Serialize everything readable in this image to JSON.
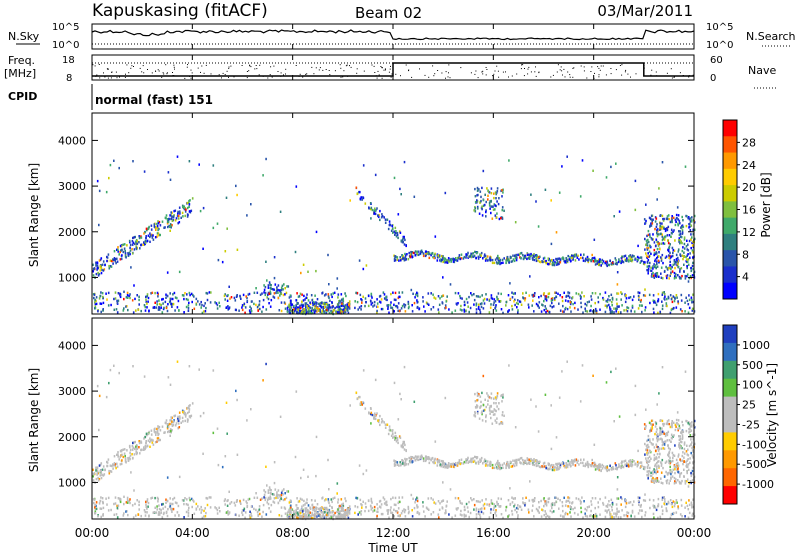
{
  "header": {
    "station": "Kapuskasing (fitACF)",
    "beam": "Beam 02",
    "date": "03/Mar/2011"
  },
  "panels": {
    "nsky_label": "N.Sky",
    "nsearch_label": "N.Search",
    "freq_label_line1": "Freq.",
    "freq_label_line2": "[MHz]",
    "nave_label": "Nave",
    "cpid_label": "CPID",
    "cpid_text": "normal (fast) 151",
    "noise_ticks": [
      "10^5",
      "10^0"
    ],
    "freq_ticks": [
      "18",
      "8"
    ],
    "nave_ticks": [
      "60",
      "0"
    ]
  },
  "chart_data": [
    {
      "type": "heatmap",
      "title": "",
      "xlabel": "",
      "ylabel": "Slant Range [km]",
      "x_ticks": [
        "00:00",
        "04:00",
        "08:00",
        "12:00",
        "16:00",
        "20:00",
        "00:00"
      ],
      "y_ticks": [
        1000,
        2000,
        3000,
        4000
      ],
      "ylim": [
        200,
        4600
      ],
      "colorbar": {
        "label": "Power [dB]",
        "ticks": [
          "28",
          "24",
          "20",
          "16",
          "12",
          "8",
          "4"
        ],
        "colors": [
          "#ff0000",
          "#ff5500",
          "#ff9900",
          "#ffcc00",
          "#cccc00",
          "#7fbf3f",
          "#3fa96a",
          "#2f7f7f",
          "#2a55aa",
          "#1a2fcc",
          "#0000ff"
        ]
      },
      "features": [
        {
          "name": "early arc",
          "time_start_h": 0.0,
          "time_end_h": 4.0,
          "range_start_km": 1100,
          "range_end_km": 2600
        },
        {
          "name": "afternoon band",
          "time_start_h": 12.0,
          "time_end_h": 22.0,
          "range_km": 1450
        },
        {
          "name": "late band",
          "time_start_h": 22.0,
          "time_end_h": 24.0,
          "range_start_km": 1000,
          "range_end_km": 2400
        }
      ]
    },
    {
      "type": "heatmap",
      "title": "",
      "xlabel": "Time UT",
      "ylabel": "Slant Range [km]",
      "x_ticks": [
        "00:00",
        "04:00",
        "08:00",
        "12:00",
        "16:00",
        "20:00",
        "00:00"
      ],
      "y_ticks": [
        1000,
        2000,
        3000,
        4000
      ],
      "ylim": [
        200,
        4600
      ],
      "colorbar": {
        "label": "Velocity [m s^-1]",
        "ticks": [
          "1000",
          "500",
          "100",
          "25",
          "-25",
          "-100",
          "-500",
          "-1000"
        ],
        "colors": [
          "#1f3fbf",
          "#2f6fbf",
          "#3f9f6f",
          "#5fbf3f",
          "#bdbdbd",
          "#bdbdbd",
          "#ffcc00",
          "#ff9900",
          "#ff6600",
          "#ff0000"
        ]
      }
    }
  ]
}
